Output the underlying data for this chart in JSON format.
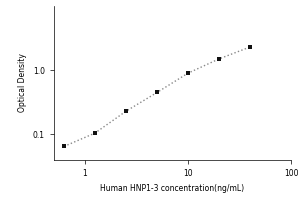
{
  "xlabel": "Human HNP1-3 concentration(ng/mL)",
  "ylabel": "Optical Density",
  "x_data": [
    0.625,
    1.25,
    2.5,
    5,
    10,
    20,
    40
  ],
  "y_data": [
    0.065,
    0.105,
    0.23,
    0.45,
    0.9,
    1.5,
    2.3
  ],
  "xlim": [
    0.5,
    100
  ],
  "ylim": [
    0.04,
    10
  ],
  "xticks": [
    1,
    10,
    100
  ],
  "yticks": [
    0.1,
    1
  ],
  "marker": "s",
  "marker_color": "#111111",
  "marker_size": 3.5,
  "line_style": ":",
  "line_color": "#888888",
  "line_width": 1.0,
  "background_color": "#ffffff",
  "xlabel_fontsize": 5.5,
  "ylabel_fontsize": 5.5,
  "tick_fontsize": 5.5
}
